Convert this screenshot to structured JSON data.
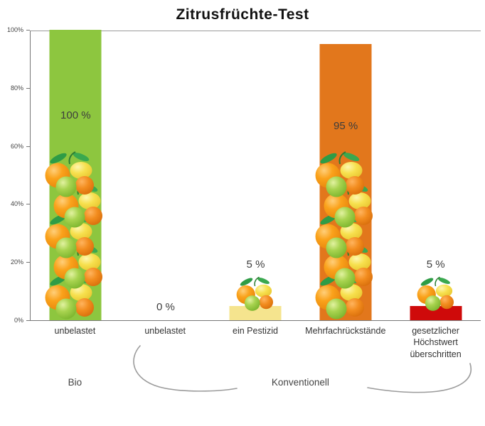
{
  "chart_data": {
    "type": "bar",
    "title": "Zitrusfrüchte-Test",
    "categories": [
      "unbelastet",
      "unbelastet",
      "ein Pestizid",
      "Mehrfachrückstände",
      "gesetzlicher Höchstwert überschritten"
    ],
    "values": [
      100,
      0,
      5,
      95,
      5
    ],
    "value_labels": [
      "100 %",
      "0 %",
      "5 %",
      "95 %",
      "5 %"
    ],
    "bar_colors": [
      "#8dc63f",
      null,
      "#f5e48e",
      "#e2771c",
      "#cf0a0a"
    ],
    "ylim": [
      0,
      100
    ],
    "yticks": [
      0,
      20,
      40,
      60,
      80,
      100
    ],
    "ytick_labels": [
      "0%",
      "20%",
      "40%",
      "60%",
      "80%",
      "100%"
    ],
    "grid": false,
    "legend": "none",
    "groups": [
      {
        "label": "Bio",
        "bars": [
          0
        ]
      },
      {
        "label": "Konventionell",
        "bars": [
          1,
          2,
          3,
          4
        ]
      }
    ],
    "fruit_decor": [
      "large",
      "none",
      "small",
      "large",
      "small"
    ]
  }
}
